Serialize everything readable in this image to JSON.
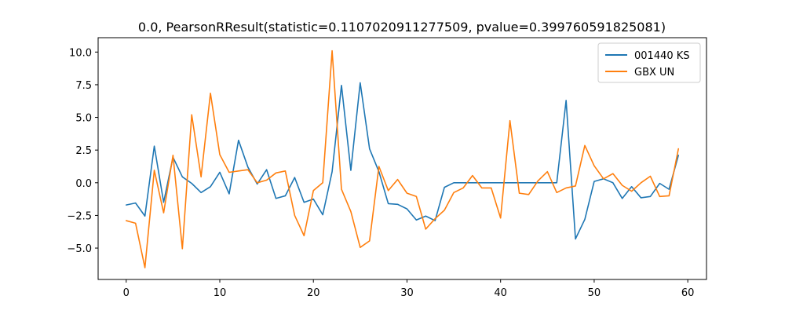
{
  "chart_data": {
    "type": "line",
    "title": "0.0, PearsonRResult(statistic=0.1107020911277509, pvalue=0.399760591825081)",
    "xlabel": "",
    "ylabel": "",
    "xlim": [
      -3,
      62
    ],
    "ylim": [
      -7.4,
      11.1
    ],
    "xticks": [
      0,
      10,
      20,
      30,
      40,
      50,
      60
    ],
    "yticks": [
      -5.0,
      -2.5,
      0.0,
      2.5,
      5.0,
      7.5,
      10.0
    ],
    "ytick_labels": [
      "−5.0",
      "−2.5",
      "0.0",
      "2.5",
      "5.0",
      "7.5",
      "10.0"
    ],
    "grid": false,
    "legend_position": "top-right",
    "x": [
      0,
      1,
      2,
      3,
      4,
      5,
      6,
      7,
      8,
      9,
      10,
      11,
      12,
      13,
      14,
      15,
      16,
      17,
      18,
      19,
      20,
      21,
      22,
      23,
      24,
      25,
      26,
      27,
      28,
      29,
      30,
      31,
      32,
      33,
      34,
      35,
      36,
      37,
      38,
      39,
      40,
      41,
      42,
      43,
      44,
      45,
      46,
      47,
      48,
      49,
      50,
      51,
      52,
      53,
      54,
      55,
      56,
      57,
      58,
      59
    ],
    "series": [
      {
        "name": "001440 KS",
        "color": "#1f77b4",
        "values": [
          -1.7,
          -1.55,
          -2.55,
          2.8,
          -1.5,
          1.95,
          0.45,
          -0.05,
          -0.75,
          -0.3,
          0.8,
          -0.85,
          3.25,
          1.2,
          -0.1,
          1.0,
          -1.2,
          -1.0,
          0.4,
          -1.5,
          -1.25,
          -2.45,
          0.85,
          7.45,
          0.95,
          7.65,
          2.6,
          0.85,
          -1.6,
          -1.65,
          -2.0,
          -2.85,
          -2.55,
          -2.9,
          -0.35,
          0.0,
          0.0,
          0.0,
          0.0,
          0.0,
          0.0,
          0.0,
          0.0,
          0.0,
          0.0,
          0.0,
          0.0,
          6.3,
          -4.3,
          -2.8,
          0.1,
          0.3,
          0.0,
          -1.2,
          -0.3,
          -1.15,
          -1.05,
          -0.05,
          -0.5,
          2.1
        ]
      },
      {
        "name": "GBX UN",
        "color": "#ff7f0e",
        "values": [
          -2.9,
          -3.1,
          -6.5,
          0.95,
          -2.3,
          2.1,
          -5.05,
          5.2,
          0.45,
          6.85,
          2.15,
          0.8,
          0.9,
          1.0,
          0.0,
          0.2,
          0.75,
          0.9,
          -2.5,
          -4.05,
          -0.6,
          0.0,
          10.1,
          -0.5,
          -2.2,
          -4.95,
          -4.45,
          1.25,
          -0.6,
          0.25,
          -0.8,
          -1.05,
          -3.55,
          -2.75,
          -2.1,
          -0.75,
          -0.4,
          0.55,
          -0.4,
          -0.4,
          -2.7,
          4.75,
          -0.8,
          -0.9,
          0.15,
          0.85,
          -0.75,
          -0.4,
          -0.25,
          2.85,
          1.3,
          0.3,
          0.7,
          -0.2,
          -0.65,
          0.0,
          0.5,
          -1.05,
          -1.0,
          2.6
        ]
      }
    ]
  }
}
